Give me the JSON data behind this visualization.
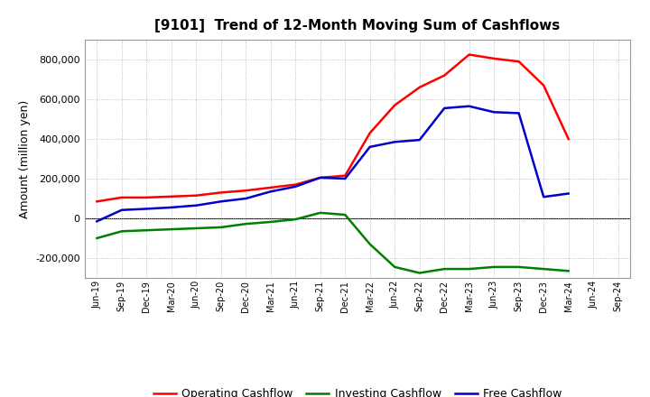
{
  "title": "[9101]  Trend of 12-Month Moving Sum of Cashflows",
  "ylabel": "Amount (million yen)",
  "background_color": "#ffffff",
  "plot_bg_color": "#ffffff",
  "grid_color": "#b0b0b0",
  "x_labels": [
    "Jun-19",
    "Sep-19",
    "Dec-19",
    "Mar-20",
    "Jun-20",
    "Sep-20",
    "Dec-20",
    "Mar-21",
    "Jun-21",
    "Sep-21",
    "Dec-21",
    "Mar-22",
    "Jun-22",
    "Sep-22",
    "Dec-22",
    "Mar-23",
    "Jun-23",
    "Sep-23",
    "Dec-23",
    "Mar-24",
    "Jun-24",
    "Sep-24"
  ],
  "operating": [
    85000,
    105000,
    105000,
    110000,
    115000,
    130000,
    140000,
    155000,
    170000,
    205000,
    215000,
    430000,
    570000,
    660000,
    720000,
    825000,
    805000,
    790000,
    670000,
    400000,
    null,
    null
  ],
  "investing": [
    -100000,
    -65000,
    -60000,
    -55000,
    -50000,
    -45000,
    -28000,
    -18000,
    -5000,
    28000,
    18000,
    -130000,
    -245000,
    -275000,
    -255000,
    -255000,
    -245000,
    -245000,
    -255000,
    -265000,
    null,
    null
  ],
  "free": [
    -15000,
    42000,
    48000,
    55000,
    65000,
    85000,
    100000,
    135000,
    160000,
    205000,
    200000,
    360000,
    385000,
    395000,
    555000,
    565000,
    535000,
    530000,
    108000,
    125000,
    null,
    null
  ],
  "operating_color": "#ff0000",
  "investing_color": "#008000",
  "free_color": "#0000cc",
  "line_width": 1.8,
  "ylim": [
    -300000,
    900000
  ],
  "yticks": [
    -200000,
    0,
    200000,
    400000,
    600000,
    800000
  ],
  "legend_labels": [
    "Operating Cashflow",
    "Investing Cashflow",
    "Free Cashflow"
  ]
}
